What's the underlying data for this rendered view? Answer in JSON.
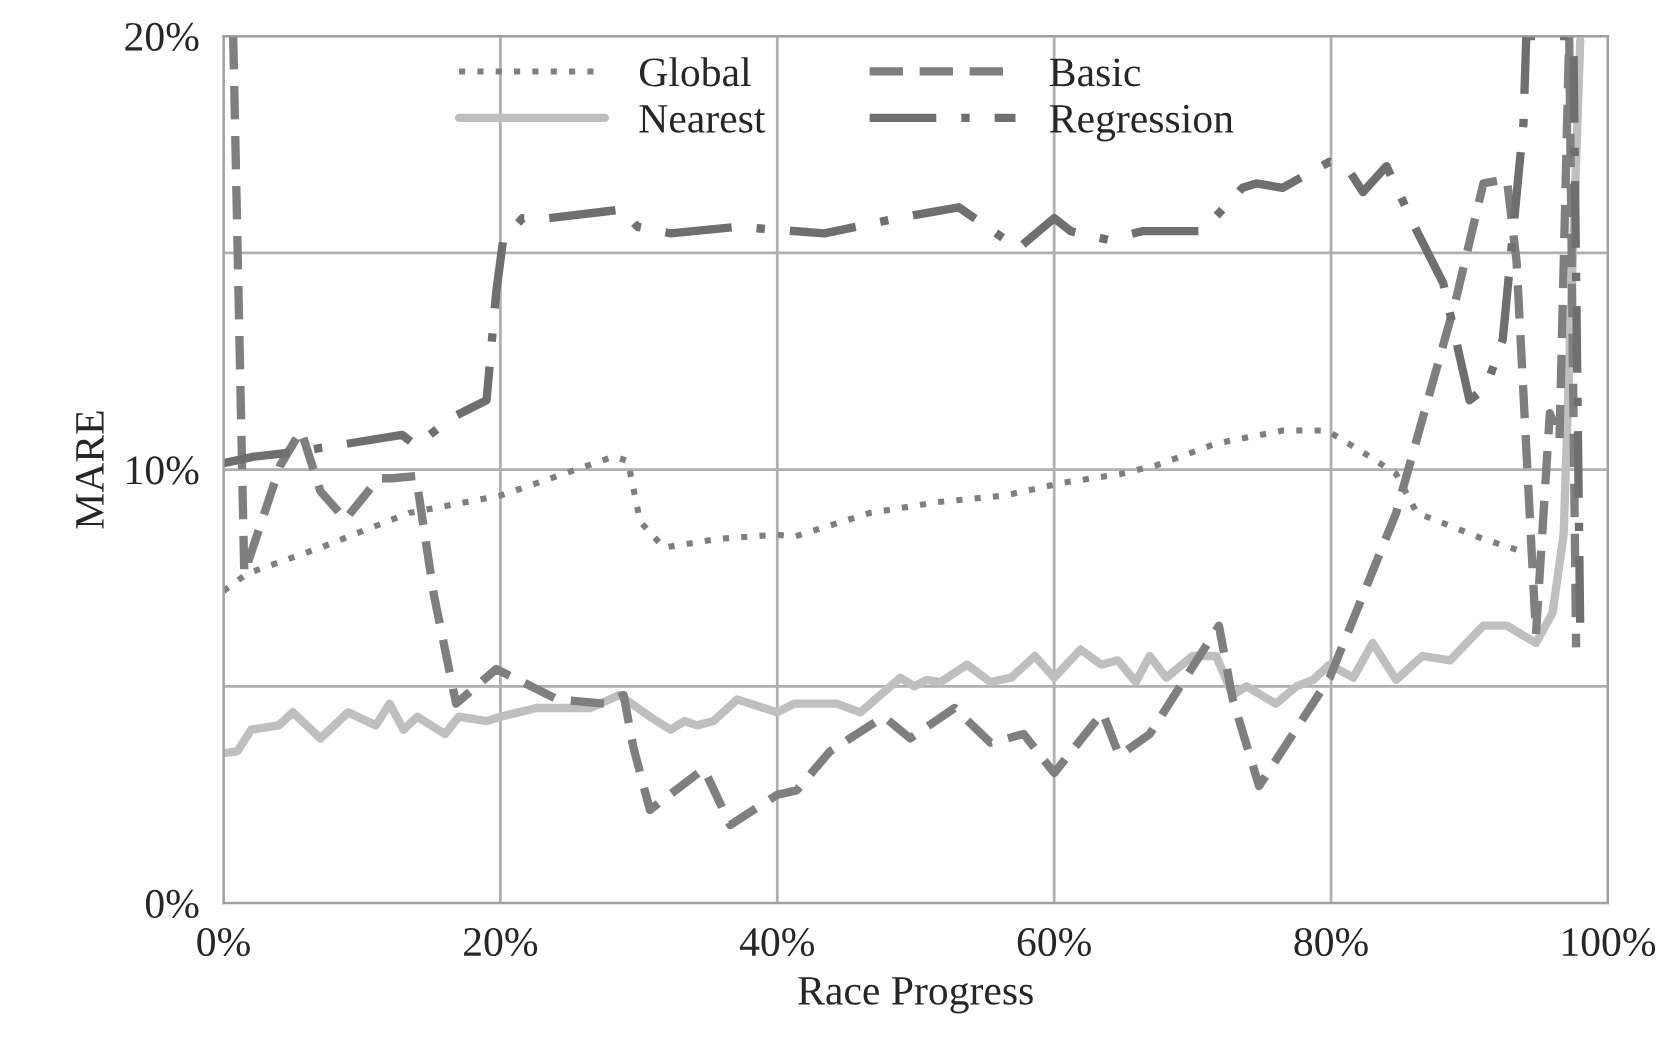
{
  "chart_data": {
    "type": "line",
    "xlabel": "Race Progress",
    "ylabel": "MARE",
    "xlim": [
      0,
      100
    ],
    "ylim": [
      0,
      20
    ],
    "xticks": [
      {
        "value": 0,
        "label": "0%"
      },
      {
        "value": 20,
        "label": "20%"
      },
      {
        "value": 40,
        "label": "40%"
      },
      {
        "value": 60,
        "label": "60%"
      },
      {
        "value": 80,
        "label": "80%"
      },
      {
        "value": 100,
        "label": "100%"
      }
    ],
    "yticks": [
      {
        "value": 0,
        "label": "0%"
      },
      {
        "value": 5,
        "label": null
      },
      {
        "value": 10,
        "label": "10%"
      },
      {
        "value": 15,
        "label": null
      },
      {
        "value": 20,
        "label": "20%"
      }
    ],
    "grid": true,
    "legend": "top",
    "marker": "none",
    "series": [
      {
        "name": "Global",
        "color": "#7f7f7f",
        "line_style": "dotted",
        "x": [
          0,
          1.7,
          7,
          13.4,
          20,
          28.2,
          29.2,
          30.1,
          31.8,
          35.7,
          40,
          41.2,
          46.7,
          51.6,
          56.4,
          60.7,
          64.8,
          67.4,
          71.7,
          76.5,
          79.7,
          82.3,
          84.7,
          86.2,
          91,
          93.9,
          95.3
        ],
        "values": [
          7.2,
          7.6,
          8.2,
          9.0,
          9.4,
          10.3,
          10.2,
          8.8,
          8.2,
          8.4,
          8.5,
          8.45,
          9.0,
          9.25,
          9.4,
          9.7,
          9.9,
          10.1,
          10.6,
          10.9,
          10.9,
          10.4,
          9.9,
          9.0,
          8.4,
          8.1,
          8.2
        ]
      },
      {
        "name": "Nearest",
        "color": "#bfbfbf",
        "line_style": "solid",
        "x": [
          0,
          1,
          2,
          4,
          5,
          7,
          9,
          11,
          12,
          13,
          14,
          16,
          17,
          19,
          20,
          22.6,
          26.5,
          28.6,
          30.8,
          32.3,
          33.3,
          34.2,
          35.4,
          37.1,
          40,
          41.2,
          42.9,
          44.3,
          46,
          48.9,
          49.9,
          50.8,
          51.8,
          53.7,
          55.4,
          56.9,
          58.6,
          60,
          61.9,
          63.4,
          64.6,
          65.9,
          66.9,
          68.1,
          70,
          71.7,
          72.9,
          73.9,
          76,
          77.5,
          78.7,
          79.9,
          81.6,
          83,
          84.7,
          86.6,
          88.6,
          91,
          92.7,
          94.8,
          96,
          96.8,
          97.5,
          98
        ],
        "values": [
          3.46,
          3.5,
          4.0,
          4.1,
          4.4,
          3.8,
          4.4,
          4.1,
          4.6,
          4.0,
          4.3,
          3.9,
          4.3,
          4.2,
          4.3,
          4.5,
          4.5,
          4.8,
          4.3,
          4.0,
          4.2,
          4.1,
          4.2,
          4.7,
          4.4,
          4.6,
          4.6,
          4.6,
          4.4,
          5.2,
          5.0,
          5.15,
          5.1,
          5.5,
          5.1,
          5.2,
          5.7,
          5.2,
          5.85,
          5.5,
          5.6,
          5.1,
          5.7,
          5.2,
          5.7,
          5.7,
          4.8,
          5.0,
          4.6,
          5.0,
          5.15,
          5.5,
          5.2,
          6.0,
          5.15,
          5.7,
          5.6,
          6.4,
          6.4,
          6.0,
          6.7,
          8.5,
          15.3,
          19.9
        ]
      },
      {
        "name": "Basic",
        "color": "#7f7f7f",
        "line_style": "dashed",
        "x": [
          0.7,
          1.5,
          4.1,
          5.6,
          7,
          8.8,
          11.2,
          12.2,
          13.9,
          15.2,
          16.8,
          19.7,
          21.6,
          24.1,
          27.5,
          28.9,
          29.6,
          30.8,
          34.7,
          36.6,
          40,
          41.4,
          43.8,
          47.7,
          49.6,
          52.8,
          55.4,
          57.8,
          60,
          63.5,
          64.7,
          66.9,
          71.9,
          72.9,
          74.8,
          79.9,
          84.7,
          89,
          91,
          92.7,
          93.4,
          94.8,
          95.8,
          96.5,
          97.2,
          97.7
        ],
        "values": [
          20,
          7.6,
          10.1,
          10.9,
          9.5,
          8.85,
          9.8,
          9.8,
          9.85,
          7.1,
          4.6,
          5.4,
          5.1,
          4.7,
          4.6,
          4.8,
          3.6,
          2.15,
          3.1,
          1.8,
          2.5,
          2.6,
          3.5,
          4.3,
          3.8,
          4.5,
          3.7,
          3.9,
          3.0,
          4.4,
          3.4,
          3.9,
          6.4,
          4.7,
          2.7,
          5.2,
          9.0,
          13.9,
          16.6,
          16.7,
          14.8,
          6.2,
          11.3,
          10.7,
          20,
          5.9
        ]
      },
      {
        "name": "Regression",
        "color": "#6f6f6f",
        "line_style": "dashdot",
        "x": [
          0,
          2.2,
          5.1,
          12.9,
          13.9,
          16.5,
          19,
          19.7,
          20.2,
          21.6,
          23.5,
          28.8,
          29.9,
          32.3,
          37.1,
          43.4,
          48.7,
          53.1,
          57.4,
          60,
          61.2,
          63.9,
          66.4,
          70.7,
          73.6,
          74.6,
          76.5,
          79.9,
          81.3,
          82.3,
          84,
          86.2,
          88.1,
          90,
          91.2,
          92.4,
          93.9,
          94.1,
          97.5,
          98
        ],
        "values": [
          10.15,
          10.3,
          10.4,
          10.8,
          10.55,
          11.2,
          11.6,
          14.1,
          15.3,
          15.8,
          15.8,
          16.0,
          15.6,
          15.45,
          15.6,
          15.45,
          15.8,
          16.05,
          15.1,
          15.8,
          15.5,
          15.3,
          15.5,
          15.5,
          16.5,
          16.6,
          16.5,
          17.1,
          16.9,
          16.4,
          17.0,
          15.5,
          14.3,
          11.6,
          11.9,
          13.0,
          18.0,
          20,
          20,
          6.2
        ]
      }
    ]
  }
}
